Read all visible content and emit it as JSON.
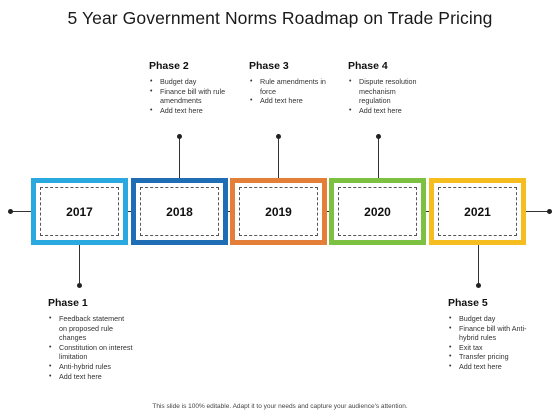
{
  "title": "5 Year Government Norms Roadmap on Trade Pricing",
  "colors": {
    "box_1": "#29a9e0",
    "box_2": "#1f6db5",
    "box_3": "#e47f3a",
    "box_4": "#7dc143",
    "box_5": "#f5bd1f"
  },
  "years": [
    "2017",
    "2018",
    "2019",
    "2020",
    "2021"
  ],
  "phases": [
    {
      "title": "Phase 1",
      "items": [
        "Feedback statement on proposed rule changes",
        "Constitution on interest limitation",
        "Anti-hybrid rules",
        "Add text here"
      ]
    },
    {
      "title": "Phase 2",
      "items": [
        "Budget day",
        "Finance bill with rule amendments",
        "Add text here"
      ]
    },
    {
      "title": "Phase 3",
      "items": [
        "Rule amendments in force",
        "Add text here"
      ]
    },
    {
      "title": "Phase 4",
      "items": [
        "Dispute resolution mechanism regulation",
        "Add text here"
      ]
    },
    {
      "title": "Phase 5",
      "items": [
        "Budget day",
        "Finance bill with Anti-hybrid rules",
        "Exit tax",
        "Transfer pricing",
        "Add text here"
      ]
    }
  ],
  "footer": "This slide is 100% editable. Adapt it to your needs and capture your audience's attention."
}
